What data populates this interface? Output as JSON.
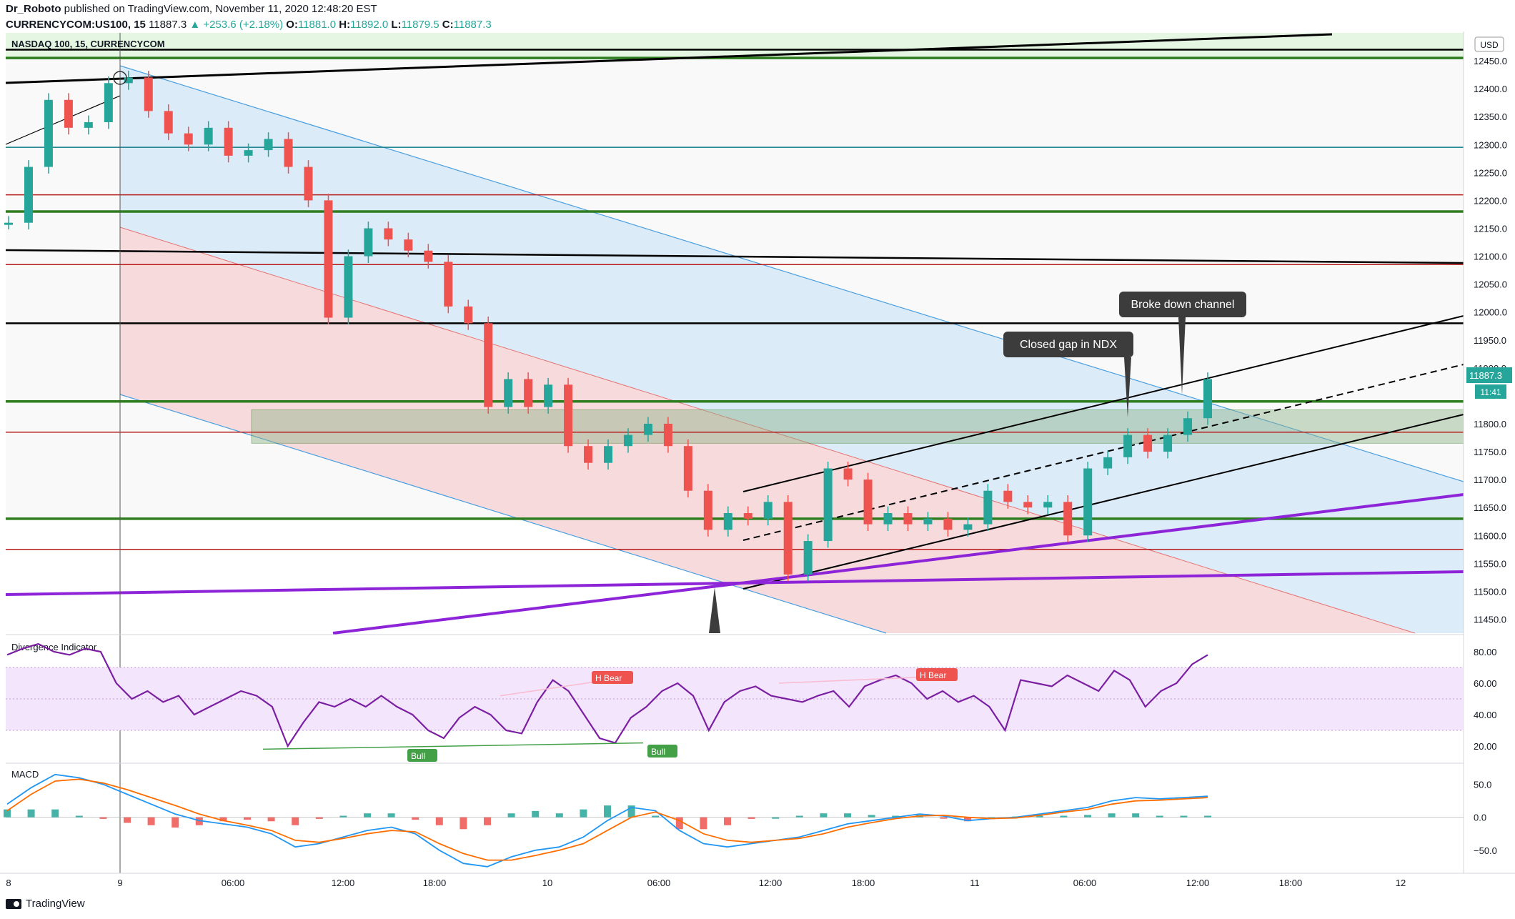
{
  "publish": {
    "author": "Dr_Roboto",
    "text": " published on TradingView.com, November 11, 2020 12:48:20 EST"
  },
  "ohlc": {
    "symbol": "CURRENCYCOM:US100, 15",
    "last": "11887.3",
    "change": "▲ +253.6 (+2.18%)",
    "o": "O:",
    "o_val": "11881.0",
    "h": "H:",
    "h_val": "11892.0",
    "l": "L:",
    "l_val": "11879.5",
    "c": "C:",
    "c_val": "11887.3"
  },
  "chart_data": {
    "type": "line",
    "title": "NASDAQ 100, 15, CURRENCYCOM",
    "currency_label": "USD",
    "price_ticks": [
      12450,
      12400,
      12350,
      12300,
      12250,
      12200,
      12150,
      12100,
      12050,
      12000,
      11950,
      11900,
      11850,
      11800,
      11750,
      11700,
      11650,
      11600,
      11550,
      11500,
      11450
    ],
    "price_tick_labels": [
      "12450.0",
      "12400.0",
      "12350.0",
      "12300.0",
      "12250.0",
      "12200.0",
      "12150.0",
      "12100.0",
      "12050.0",
      "12000.0",
      "11950.0",
      "11900.0",
      "",
      "11800.0",
      "11750.0",
      "11700.0",
      "11650.0",
      "11600.0",
      "11550.0",
      "11500.0",
      "11450.0"
    ],
    "ylim": [
      11425,
      12500
    ],
    "x_tick_labels": [
      "8",
      "9",
      "06:00",
      "12:00",
      "18:00",
      "10",
      "06:00",
      "12:00",
      "18:00",
      "11",
      "06:00",
      "12:00",
      "18:00",
      "12"
    ],
    "last_price_label": "11887.3",
    "countdown_label": "11:41",
    "series": [
      {
        "name": "NASDAQ 100",
        "values_sampled": [
          12160,
          12260,
          12380,
          12330,
          12340,
          12410,
          12420,
          12360,
          12320,
          12300,
          12330,
          12280,
          12290,
          12310,
          12260,
          12200,
          11990,
          12100,
          12150,
          12130,
          12110,
          12090,
          12010,
          11980,
          11830,
          11880,
          11830,
          11870,
          11760,
          11730,
          11760,
          11780,
          11800,
          11760,
          11680,
          11610,
          11640,
          11630,
          11660,
          11530,
          11590,
          11720,
          11700,
          11620,
          11640,
          11620,
          11630,
          11610,
          11620,
          11680,
          11660,
          11650,
          11660,
          11600,
          11720,
          11740,
          11780,
          11750,
          11780,
          11810,
          11880
        ]
      }
    ],
    "horizontal_levels_green": [
      12455,
      12180,
      11840,
      11630
    ],
    "horizontal_levels_red": [
      12210,
      12085,
      11785,
      11575
    ],
    "horizontal_levels_teal": [
      12295
    ],
    "horizontal_levels_black": [
      12470,
      11980
    ],
    "annotations": [
      {
        "text": "Closed gap in NDX"
      },
      {
        "text": "Broke down channel"
      }
    ],
    "divergence_indicator": {
      "title": "Divergence Indicator",
      "ticks": [
        "80.00",
        "60.00",
        "40.00",
        "20.00"
      ],
      "ylim": [
        10,
        90
      ],
      "band": [
        30,
        70
      ],
      "labels": [
        "H Bear",
        "H Bear",
        "Bull",
        "Bull"
      ],
      "values_sampled": [
        78,
        82,
        85,
        80,
        78,
        82,
        80,
        60,
        50,
        55,
        48,
        52,
        40,
        45,
        50,
        55,
        52,
        45,
        20,
        35,
        48,
        45,
        50,
        45,
        52,
        45,
        40,
        30,
        25,
        38,
        45,
        40,
        30,
        28,
        48,
        62,
        55,
        40,
        25,
        22,
        38,
        45,
        55,
        60,
        52,
        30,
        48,
        55,
        58,
        52,
        50,
        48,
        52,
        55,
        45,
        58,
        62,
        65,
        60,
        50,
        55,
        48,
        52,
        45,
        30,
        62,
        60,
        58,
        65,
        60,
        55,
        68,
        62,
        45,
        55,
        60,
        72,
        78
      ]
    },
    "macd": {
      "title": "MACD",
      "ticks": [
        "50.0",
        "0.0",
        "−50.0"
      ],
      "ylim": [
        -85,
        80
      ],
      "macd_sampled": [
        20,
        45,
        65,
        60,
        50,
        35,
        20,
        5,
        -5,
        -10,
        -15,
        -25,
        -45,
        -40,
        -30,
        -20,
        -15,
        -25,
        -50,
        -70,
        -75,
        -60,
        -50,
        -45,
        -30,
        -5,
        15,
        10,
        -20,
        -40,
        -45,
        -40,
        -35,
        -30,
        -20,
        -10,
        -5,
        0,
        5,
        2,
        -5,
        -2,
        0,
        5,
        10,
        15,
        25,
        30,
        28,
        30,
        32
      ],
      "signal_sampled": [
        10,
        35,
        55,
        58,
        52,
        42,
        30,
        18,
        5,
        -5,
        -12,
        -20,
        -35,
        -38,
        -32,
        -25,
        -20,
        -22,
        -40,
        -55,
        -65,
        -65,
        -58,
        -50,
        -40,
        -20,
        0,
        8,
        -5,
        -25,
        -35,
        -38,
        -35,
        -32,
        -25,
        -15,
        -8,
        -2,
        2,
        3,
        0,
        -2,
        -1,
        3,
        8,
        12,
        20,
        25,
        26,
        28,
        30
      ]
    }
  },
  "footer": {
    "brand": "TradingView"
  },
  "colors": {
    "up": "#26a69a",
    "down": "#ef5350",
    "green_level": "#2e7d1e",
    "red_level": "#b71c1c",
    "teal_level": "#0e7c86",
    "purple": "#8e24d8",
    "blue_fill": "#d6e9f8",
    "red_fill": "#f9d8d8"
  }
}
